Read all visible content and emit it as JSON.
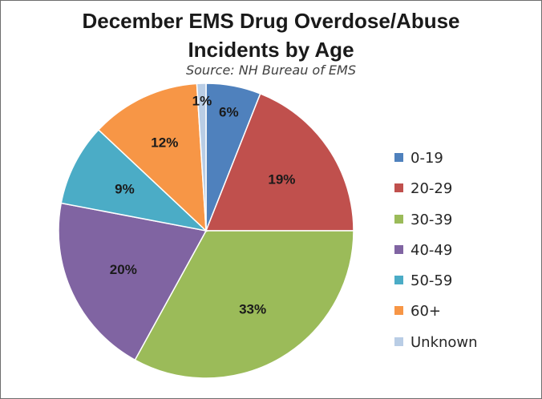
{
  "chart_data": {
    "type": "pie",
    "title_lines": [
      "December EMS Drug Overdose/Abuse",
      "Incidents by Age"
    ],
    "subtitle": "Source: NH Bureau of EMS",
    "start_angle_deg": 0,
    "direction": "clockwise",
    "legend_position": "right",
    "slices": [
      {
        "label": "0-19",
        "value": 6,
        "display": "6%",
        "color": "#4f81bd"
      },
      {
        "label": "20-29",
        "value": 19,
        "display": "19%",
        "color": "#c0504d"
      },
      {
        "label": "30-39",
        "value": 33,
        "display": "33%",
        "color": "#9bbb59"
      },
      {
        "label": "40-49",
        "value": 20,
        "display": "20%",
        "color": "#8064a2"
      },
      {
        "label": "50-59",
        "value": 9,
        "display": "9%",
        "color": "#4bacc6"
      },
      {
        "label": "60+",
        "value": 12,
        "display": "12%",
        "color": "#f79646"
      },
      {
        "label": "Unknown",
        "value": 1,
        "display": "1%",
        "color": "#b9cde5"
      }
    ]
  }
}
